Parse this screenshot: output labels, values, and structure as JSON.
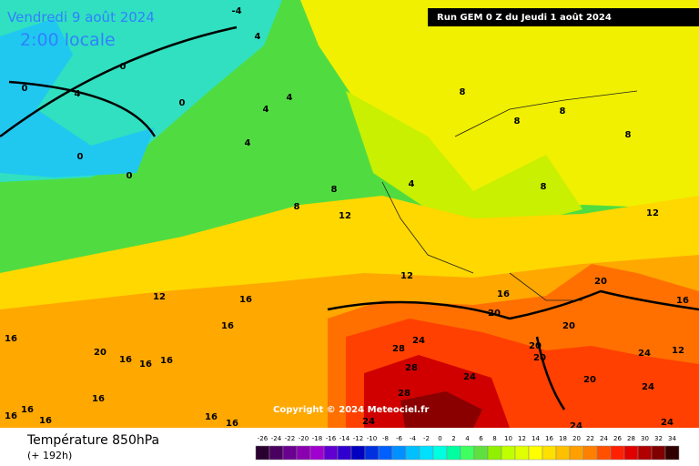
{
  "header": {
    "date": "Vendredi 9 août 2024",
    "time": "2:00 locale",
    "run": "Run GEM 0 Z du Jeudi 1 août 2024"
  },
  "copyright": "Copyright © 2024 Meteociel.fr",
  "footer": {
    "title": "Température 850hPa",
    "lead": "(+ 192h)"
  },
  "colorbar": {
    "ticks": [
      -26,
      -24,
      -22,
      -20,
      -18,
      -16,
      -14,
      -12,
      -10,
      -8,
      -6,
      -4,
      -2,
      0,
      2,
      4,
      6,
      8,
      10,
      12,
      14,
      16,
      18,
      20,
      22,
      24,
      26,
      28,
      30,
      32,
      34
    ],
    "colors": [
      "#2a0030",
      "#4a0060",
      "#6a0090",
      "#8a00b0",
      "#a000d0",
      "#6000d0",
      "#3000d0",
      "#0000c0",
      "#0030e0",
      "#0060ff",
      "#0090ff",
      "#00c0ff",
      "#00e0ff",
      "#00ffe0",
      "#00ffa0",
      "#40ff60",
      "#60e040",
      "#90f000",
      "#c0ff00",
      "#e0ff00",
      "#ffff00",
      "#ffe000",
      "#ffc000",
      "#ffa000",
      "#ff8000",
      "#ff5000",
      "#ff2000",
      "#e00000",
      "#b00000",
      "#800000",
      "#300000"
    ]
  },
  "contour_labels": [
    -4,
    4,
    0,
    0,
    4,
    0,
    4,
    4,
    0,
    0,
    4,
    8,
    8,
    12,
    4,
    8,
    8,
    8,
    8,
    8,
    12,
    12,
    16,
    16,
    12,
    16,
    16,
    20,
    16,
    16,
    16,
    20,
    20,
    20,
    24,
    28,
    28,
    24,
    28,
    24,
    20,
    20,
    24,
    24,
    20,
    24,
    24,
    16,
    12,
    16,
    16,
    16,
    16,
    16,
    16
  ]
}
